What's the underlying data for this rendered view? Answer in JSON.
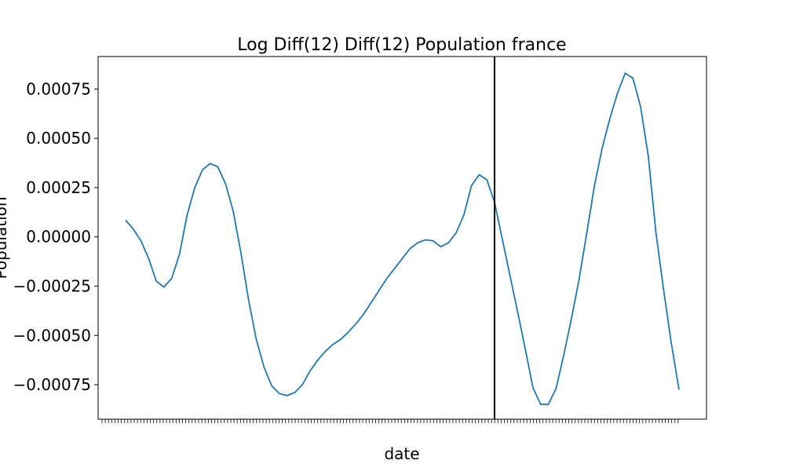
{
  "chart_data": {
    "type": "line",
    "title": "Log Diff(12) Diff(12) Population france",
    "xlabel": "date",
    "ylabel": "Population",
    "ylim": [
      -0.000925,
      0.000915
    ],
    "y_ticks": [
      "0.00075",
      "0.00050",
      "0.00025",
      "0.00000",
      "−0.00025",
      "−0.00050",
      "−0.00075"
    ],
    "y_tick_values": [
      0.00075,
      0.0005,
      0.00025,
      0.0,
      -0.00025,
      -0.0005,
      -0.00075
    ],
    "grid": false,
    "split_marker_index": 48,
    "colors": {
      "series": "#1f77b4",
      "split_line": "#000000"
    },
    "series": [
      {
        "values": [
          8.5e-05,
          4e-05,
          -2e-05,
          -0.00011,
          -0.000225,
          -0.000255,
          -0.00021,
          -9e-05,
          0.00011,
          0.00025,
          0.00034,
          0.000372,
          0.000355,
          0.00027,
          0.00013,
          -8e-05,
          -0.00032,
          -0.00052,
          -0.00066,
          -0.000755,
          -0.000795,
          -0.000805,
          -0.00079,
          -0.00075,
          -0.00068,
          -0.000625,
          -0.00058,
          -0.000545,
          -0.00052,
          -0.000482,
          -0.00044,
          -0.00039,
          -0.00033,
          -0.00027,
          -0.00021,
          -0.00016,
          -0.00011,
          -6e-05,
          -3e-05,
          -1.5e-05,
          -2e-05,
          -5e-05,
          -3e-05,
          2e-05,
          0.00011,
          0.00026,
          0.000315,
          0.00029,
          0.000175,
          -1e-05,
          -0.000195,
          -0.00038,
          -0.00057,
          -0.000765,
          -0.00085,
          -0.00085,
          -0.00077,
          -0.0006,
          -0.000415,
          -0.000215,
          2e-05,
          0.00026,
          0.00045,
          0.0006,
          0.00073,
          0.00083,
          0.000805,
          0.00066,
          0.00041,
          2e-05,
          -0.00027,
          -0.00054,
          -0.000775
        ]
      }
    ]
  }
}
